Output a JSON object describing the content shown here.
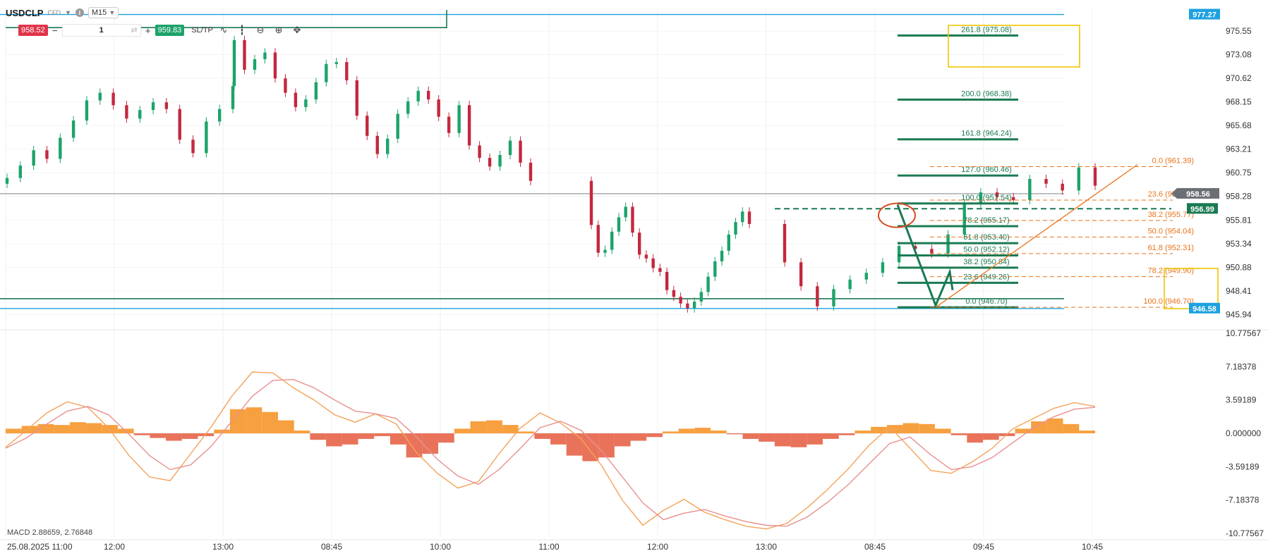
{
  "toolbar": {
    "symbol": "USDCLP",
    "instrument_type": "CFD",
    "info_icon": "info-icon",
    "timeframe": "M15",
    "sell_price": "958.52",
    "buy_price": "959.83",
    "quantity": "1",
    "sltp_label": "SL/TP",
    "tools": [
      "line-chart-icon",
      "candles-icon",
      "zoom-out-icon",
      "zoom-in-icon",
      "move-icon"
    ]
  },
  "colors": {
    "up": "#1ca36a",
    "down": "#c3283e",
    "fib_green": "#1a7a52",
    "fib_orange": "#e8731c",
    "hline_blue": "#1da1e0",
    "hline_green": "#1a7a52",
    "macd_pos": "#f7a040",
    "macd_neg": "#e8735a",
    "macd_line": "#f4a35a",
    "signal_line": "#e89090",
    "highlight_box": "#f2c500"
  },
  "chart_data": {
    "type": "candlestick",
    "x_tick_labels": [
      "25.08.2025 11:00",
      "12:00",
      "13:00",
      "08:45",
      "10:00",
      "11:00",
      "12:00",
      "13:00",
      "08:45",
      "09:45",
      "10:45"
    ],
    "ylim": [
      944.8,
      977.9
    ],
    "y_tick_labels": [
      "975.55",
      "973.08",
      "970.62",
      "968.15",
      "965.68",
      "963.21",
      "960.75",
      "958.28",
      "955.81",
      "953.34",
      "950.88",
      "948.41",
      "945.94"
    ],
    "price_line_labels": [
      {
        "label": "977.27",
        "value": 977.27,
        "color": "#1da1e0"
      },
      {
        "label": "946.58",
        "value": 946.58,
        "color": "#1da1e0"
      },
      {
        "label": "958.56",
        "value": 958.56,
        "color": "#8a9099"
      },
      {
        "label": "956.99",
        "value": 956.99,
        "color": "#1a7a52"
      }
    ],
    "closes": [
      960.2,
      961.5,
      963.1,
      962.2,
      964.4,
      966.2,
      968.3,
      969.1,
      967.8,
      966.4,
      967.3,
      968.1,
      967.4,
      964.2,
      962.8,
      966.1,
      967.4,
      969.8,
      974.6,
      971.5,
      972.6,
      973.3,
      970.6,
      969.1,
      967.6,
      968.4,
      970.2,
      972.1,
      972.3,
      970.4,
      966.7,
      964.6,
      962.7,
      964.3,
      966.9,
      968.2,
      969.3,
      968.4,
      966.6,
      964.9,
      967.8,
      963.6,
      962.3,
      961.4,
      962.6,
      964.1,
      961.8,
      959.9,
      955.3,
      952.4,
      952.7,
      954.6,
      956.1,
      957.2,
      954.5,
      952.2,
      951.8,
      950.8,
      950.4,
      948.5,
      947.8,
      947.1,
      946.6,
      947.3,
      948.3,
      949.9,
      951.5,
      952.6,
      954.3,
      955.6,
      956.7,
      955.4,
      951.4,
      948.9,
      946.8,
      948.6,
      949.6,
      950.3,
      951.4,
      953.1,
      952.8,
      952.3,
      954.3,
      957.5,
      958.7,
      958.2,
      957.9,
      960.1,
      959.6,
      958.9,
      961.3,
      959.4
    ],
    "macd_label": "MACD 2.88659, 2.76848",
    "macd_ylim": [
      -10.77567,
      10.77567
    ],
    "macd_tick_labels": [
      "10.77567",
      "7.18378",
      "3.59189",
      "0.000000",
      "-3.59189",
      "-7.18378",
      "-10.77567"
    ],
    "macd_histogram": [
      0.5,
      0.8,
      1.0,
      0.9,
      1.2,
      1.1,
      0.9,
      0.5,
      -0.2,
      -0.5,
      -0.8,
      -0.6,
      -0.3,
      0.4,
      2.6,
      2.8,
      2.3,
      1.4,
      0.3,
      -0.7,
      -1.4,
      -1.2,
      -0.6,
      -0.3,
      -1.2,
      -2.6,
      -2.2,
      -1.0,
      0.5,
      1.3,
      1.4,
      0.9,
      0.2,
      -0.6,
      -1.2,
      -2.4,
      -3.0,
      -2.6,
      -1.4,
      -0.8,
      -0.4,
      0.2,
      0.5,
      0.6,
      0.3,
      -0.1,
      -0.6,
      -0.9,
      -1.4,
      -1.5,
      -1.2,
      -0.6,
      -0.2,
      0.3,
      0.7,
      0.9,
      1.1,
      1.0,
      0.5,
      -0.2,
      -1.0,
      -0.7,
      -0.3,
      0.5,
      1.3,
      1.6,
      1.0,
      0.3
    ],
    "macd_line": [
      -1.5,
      0.3,
      2.2,
      3.4,
      2.8,
      0.6,
      -2.4,
      -4.7,
      -5.1,
      -2.2,
      0.7,
      4.0,
      6.6,
      6.5,
      4.9,
      3.6,
      2.0,
      1.2,
      2.1,
      1.0,
      -2.1,
      -4.3,
      -5.9,
      -5.2,
      -2.2,
      0.5,
      2.2,
      1.1,
      -0.6,
      -3.5,
      -7.2,
      -9.9,
      -8.3,
      -7.1,
      -8.5,
      -9.3,
      -10.0,
      -10.3,
      -9.7,
      -8.0,
      -6.0,
      -3.8,
      -1.3,
      0.7,
      -1.6,
      -4.0,
      -4.3,
      -3.1,
      -1.6,
      0.5,
      1.6,
      2.7,
      3.3,
      2.9
    ],
    "signal_line": [
      -1.6,
      -0.5,
      1.0,
      2.4,
      2.9,
      2.0,
      -0.1,
      -2.4,
      -3.9,
      -3.4,
      -1.4,
      1.3,
      4.0,
      5.7,
      5.8,
      4.9,
      3.6,
      2.4,
      2.1,
      1.6,
      -0.4,
      -2.8,
      -4.6,
      -5.5,
      -3.9,
      -1.7,
      0.6,
      1.3,
      0.3,
      -1.9,
      -4.7,
      -7.5,
      -9.3,
      -8.6,
      -8.2,
      -8.9,
      -9.5,
      -9.9,
      -10.0,
      -9.0,
      -7.4,
      -5.5,
      -3.3,
      -1.1,
      -0.4,
      -2.3,
      -3.9,
      -3.6,
      -2.6,
      -1.0,
      0.6,
      1.8,
      2.6,
      2.8
    ],
    "fib_extension": {
      "levels": [
        {
          "label": "261.8 (975.08)",
          "price": 975.08
        },
        {
          "label": "200.0 (968.38)",
          "price": 968.38
        },
        {
          "label": "161.8 (964.24)",
          "price": 964.24
        },
        {
          "label": "127.0 (960.46)",
          "price": 960.46
        },
        {
          "label": "100.0 (957.54)",
          "price": 957.54
        },
        {
          "label": "78.2 (955.17)",
          "price": 955.17
        },
        {
          "label": "61.8 (953.40)",
          "price": 953.4
        },
        {
          "label": "50.0 (952.12)",
          "price": 952.12
        },
        {
          "label": "38.2 (950.84)",
          "price": 950.84
        },
        {
          "label": "23.6 (949.26)",
          "price": 949.26
        },
        {
          "label": "0.0 (946.70)",
          "price": 946.7
        }
      ]
    },
    "fib_retracement": {
      "levels": [
        {
          "label": "0.0 (961.39)",
          "price": 961.39
        },
        {
          "label": "23.6 (957.89)",
          "price": 957.89
        },
        {
          "label": "38.2 (955.77)",
          "price": 955.77
        },
        {
          "label": "50.0 (954.04)",
          "price": 954.04
        },
        {
          "label": "61.8 (952.31)",
          "price": 952.31
        },
        {
          "label": "78.2 (949.90)",
          "price": 949.9
        },
        {
          "label": "100.0 (946.70)",
          "price": 946.7
        }
      ]
    }
  }
}
